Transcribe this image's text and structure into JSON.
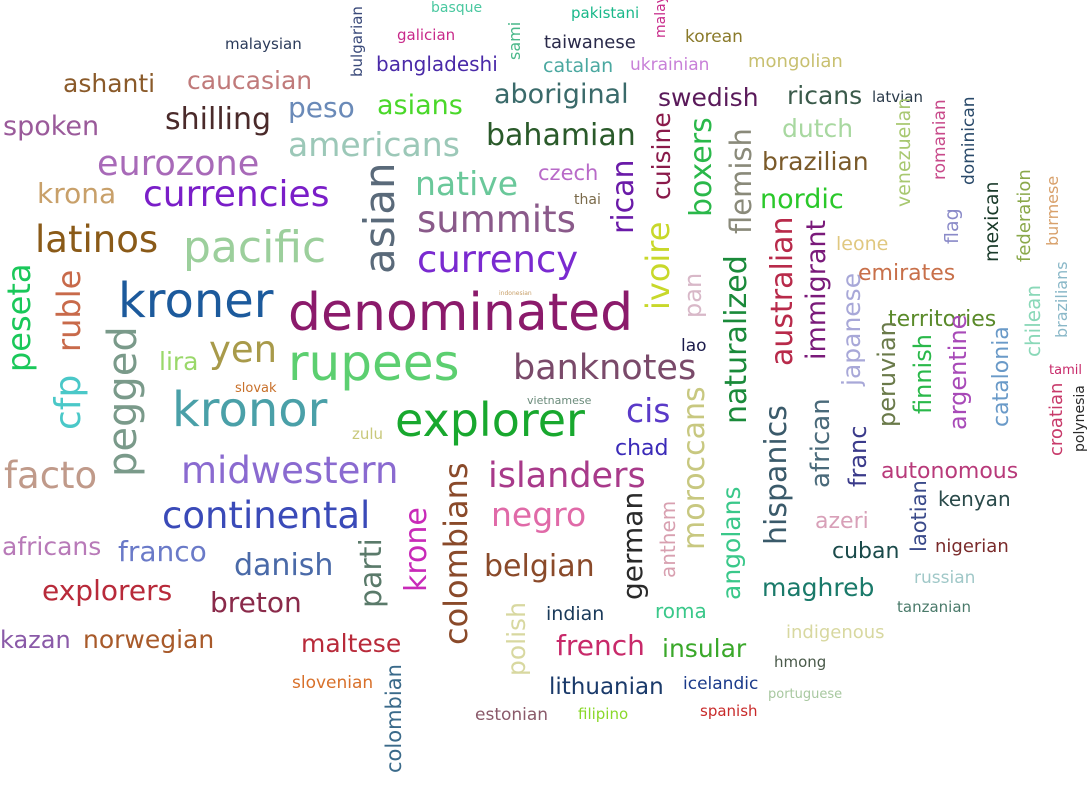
{
  "words": [
    {
      "text": "denominated",
      "color": "#8b1a6b"
    },
    {
      "text": "rupees",
      "color": "#5ccf70"
    },
    {
      "text": "kroner",
      "color": "#1c5a9c"
    },
    {
      "text": "kronor",
      "color": "#4aa0a8"
    },
    {
      "text": "explorer",
      "color": "#18a82e"
    },
    {
      "text": "pacific",
      "color": "#9ccf9c"
    },
    {
      "text": "currencies",
      "color": "#7a1ec8"
    },
    {
      "text": "midwestern",
      "color": "#8a6ad0"
    },
    {
      "text": "continental",
      "color": "#3a4ab8"
    },
    {
      "text": "latinos",
      "color": "#8a5a18"
    },
    {
      "text": "currency",
      "color": "#7a2ad0"
    },
    {
      "text": "summits",
      "color": "#8a5a8a"
    },
    {
      "text": "eurozone",
      "color": "#a86ab8"
    },
    {
      "text": "banknotes",
      "color": "#7a4a6a"
    },
    {
      "text": "islanders",
      "color": "#a83a8a"
    },
    {
      "text": "yen",
      "color": "#a89a4a"
    },
    {
      "text": "facto",
      "color": "#c09a8a"
    },
    {
      "text": "americans",
      "color": "#9cc8b8"
    },
    {
      "text": "native",
      "color": "#6ac89a"
    },
    {
      "text": "bahamian",
      "color": "#2a5a2a"
    },
    {
      "text": "shilling",
      "color": "#4a2a2a"
    },
    {
      "text": "aboriginal",
      "color": "#3a6a6a"
    },
    {
      "text": "swedish",
      "color": "#5a1a5a"
    },
    {
      "text": "negro",
      "color": "#e06aa8"
    },
    {
      "text": "danish",
      "color": "#4a6aa8"
    },
    {
      "text": "explorers",
      "color": "#b82a3a"
    },
    {
      "text": "breton",
      "color": "#8a2a4a"
    },
    {
      "text": "belgian",
      "color": "#8a4a2a"
    },
    {
      "text": "franco",
      "color": "#6a7ac8"
    },
    {
      "text": "norwegian",
      "color": "#a85a2a"
    },
    {
      "text": "maltese",
      "color": "#b82a3a"
    },
    {
      "text": "french",
      "color": "#c82a6a"
    },
    {
      "text": "insular",
      "color": "#3aa82a"
    },
    {
      "text": "lithuanian",
      "color": "#1a3a6a"
    },
    {
      "text": "spoken",
      "color": "#9a5a9a"
    },
    {
      "text": "krona",
      "color": "#c8a06a"
    },
    {
      "text": "ashanti",
      "color": "#8a5a2a"
    },
    {
      "text": "caucasian",
      "color": "#c07a7a"
    },
    {
      "text": "peso",
      "color": "#6a8ab8"
    },
    {
      "text": "asians",
      "color": "#4ad82a"
    },
    {
      "text": "brazilian",
      "color": "#7a5a2a"
    },
    {
      "text": "nordic",
      "color": "#2ac82a"
    },
    {
      "text": "ricans",
      "color": "#3a5a4a"
    },
    {
      "text": "dutch",
      "color": "#a8d8a0"
    },
    {
      "text": "emirates",
      "color": "#c8704a"
    },
    {
      "text": "territories",
      "color": "#5a8a2a"
    },
    {
      "text": "autonomous",
      "color": "#b83a7a"
    },
    {
      "text": "kenyan",
      "color": "#2a4a4a"
    },
    {
      "text": "azeri",
      "color": "#d8a0b8"
    },
    {
      "text": "cuban",
      "color": "#1a4a4a"
    },
    {
      "text": "maghreb",
      "color": "#1a7a6a"
    },
    {
      "text": "chad",
      "color": "#3a2ab8"
    },
    {
      "text": "cis",
      "color": "#5a3ac8"
    },
    {
      "text": "lira",
      "color": "#9ad86a"
    },
    {
      "text": "africans",
      "color": "#b87ab8"
    },
    {
      "text": "kazan",
      "color": "#8a5aa8"
    },
    {
      "text": "czech",
      "color": "#b86ac8"
    },
    {
      "text": "bangladeshi",
      "color": "#4a2aa8"
    },
    {
      "text": "taiwanese",
      "color": "#2a2a4a"
    },
    {
      "text": "catalan",
      "color": "#4aa8a0"
    },
    {
      "text": "ukrainian",
      "color": "#c880d8"
    },
    {
      "text": "korean",
      "color": "#8a7a2a"
    },
    {
      "text": "mongolian",
      "color": "#c8c070"
    },
    {
      "text": "latvian",
      "color": "#2a3a4a"
    },
    {
      "text": "leone",
      "color": "#e0c880"
    },
    {
      "text": "nigerian",
      "color": "#7a2a2a"
    },
    {
      "text": "russian",
      "color": "#a0c8c8"
    },
    {
      "text": "tanzanian",
      "color": "#4a7a6a"
    },
    {
      "text": "indigenous",
      "color": "#d8d8a0"
    },
    {
      "text": "hmong",
      "color": "#4a5a4a"
    },
    {
      "text": "portuguese",
      "color": "#a8c8a0"
    },
    {
      "text": "icelandic",
      "color": "#1a3a8a"
    },
    {
      "text": "spanish",
      "color": "#c82a2a"
    },
    {
      "text": "filipino",
      "color": "#8ad82a"
    },
    {
      "text": "estonian",
      "color": "#8a5a6a"
    },
    {
      "text": "indian",
      "color": "#1a3a5a"
    },
    {
      "text": "roma",
      "color": "#3ac88a"
    },
    {
      "text": "slovenian",
      "color": "#d8702a"
    },
    {
      "text": "lao",
      "color": "#1a1a4a"
    },
    {
      "text": "malaysian",
      "color": "#2a3a5a"
    },
    {
      "text": "galician",
      "color": "#c82a8a"
    },
    {
      "text": "basque",
      "color": "#4ac8a0"
    },
    {
      "text": "pakistani",
      "color": "#1ab88a"
    },
    {
      "text": "zulu",
      "color": "#c8c87a"
    },
    {
      "text": "slovak",
      "color": "#c8702a"
    },
    {
      "text": "thai",
      "color": "#7a6a4a"
    },
    {
      "text": "vietnamese",
      "color": "#6a8a7a"
    },
    {
      "text": "indonesian",
      "color": "#c8a06a"
    },
    {
      "text": "tamil",
      "color": "#c82a6a"
    },
    {
      "text": "asian",
      "color": "#5a6a7a"
    },
    {
      "text": "pegged",
      "color": "#7a9a8a"
    },
    {
      "text": "peseta",
      "color": "#1ac85a"
    },
    {
      "text": "ruble",
      "color": "#c86a4a"
    },
    {
      "text": "cfp",
      "color": "#4ac8c8"
    },
    {
      "text": "rican",
      "color": "#6a1aa8"
    },
    {
      "text": "cuisine",
      "color": "#8a1a4a"
    },
    {
      "text": "boxers",
      "color": "#2ab84a"
    },
    {
      "text": "flemish",
      "color": "#8a8a7a"
    },
    {
      "text": "ivoire",
      "color": "#c8d82a"
    },
    {
      "text": "pan",
      "color": "#d8b8c8"
    },
    {
      "text": "naturalized",
      "color": "#1a8a3a"
    },
    {
      "text": "australian",
      "color": "#b82a4a"
    },
    {
      "text": "immigrant",
      "color": "#7a1a7a"
    },
    {
      "text": "japanese",
      "color": "#a8a8d8"
    },
    {
      "text": "peruvian",
      "color": "#6a7a4a"
    },
    {
      "text": "finnish",
      "color": "#2ab84a"
    },
    {
      "text": "argentine",
      "color": "#a84ab8"
    },
    {
      "text": "catalonia",
      "color": "#6a9ac8"
    },
    {
      "text": "chilean",
      "color": "#8ad8b8"
    },
    {
      "text": "brazilians",
      "color": "#8ab8c8"
    },
    {
      "text": "croatian",
      "color": "#c83a6a"
    },
    {
      "text": "polynesia",
      "color": "#2a2a2a"
    },
    {
      "text": "venezuelan",
      "color": "#a8c870"
    },
    {
      "text": "romanian",
      "color": "#c84a8a"
    },
    {
      "text": "dominican",
      "color": "#2a4a6a"
    },
    {
      "text": "flag",
      "color": "#8a8ac8"
    },
    {
      "text": "mexican",
      "color": "#1a3a2a"
    },
    {
      "text": "federation",
      "color": "#8aa84a"
    },
    {
      "text": "burmese",
      "color": "#d8a06a"
    },
    {
      "text": "moroccans",
      "color": "#c8c880"
    },
    {
      "text": "hispanics",
      "color": "#3a5a6a"
    },
    {
      "text": "african",
      "color": "#4a6a7a"
    },
    {
      "text": "franc",
      "color": "#3a3a8a"
    },
    {
      "text": "laotian",
      "color": "#3a4a8a"
    },
    {
      "text": "angolans",
      "color": "#3ac88a"
    },
    {
      "text": "anthem",
      "color": "#d8a0b0"
    },
    {
      "text": "german",
      "color": "#2a2a2a"
    },
    {
      "text": "colombians",
      "color": "#8a4a2a"
    },
    {
      "text": "krone",
      "color": "#c82ab8"
    },
    {
      "text": "parti",
      "color": "#5a7a6a"
    },
    {
      "text": "polish",
      "color": "#d8d8a0"
    },
    {
      "text": "colombian",
      "color": "#3a6a8a"
    },
    {
      "text": "bulgarian",
      "color": "#3a4a7a"
    },
    {
      "text": "sami",
      "color": "#4ab88a"
    },
    {
      "text": "malay",
      "color": "#c82a8a"
    }
  ]
}
